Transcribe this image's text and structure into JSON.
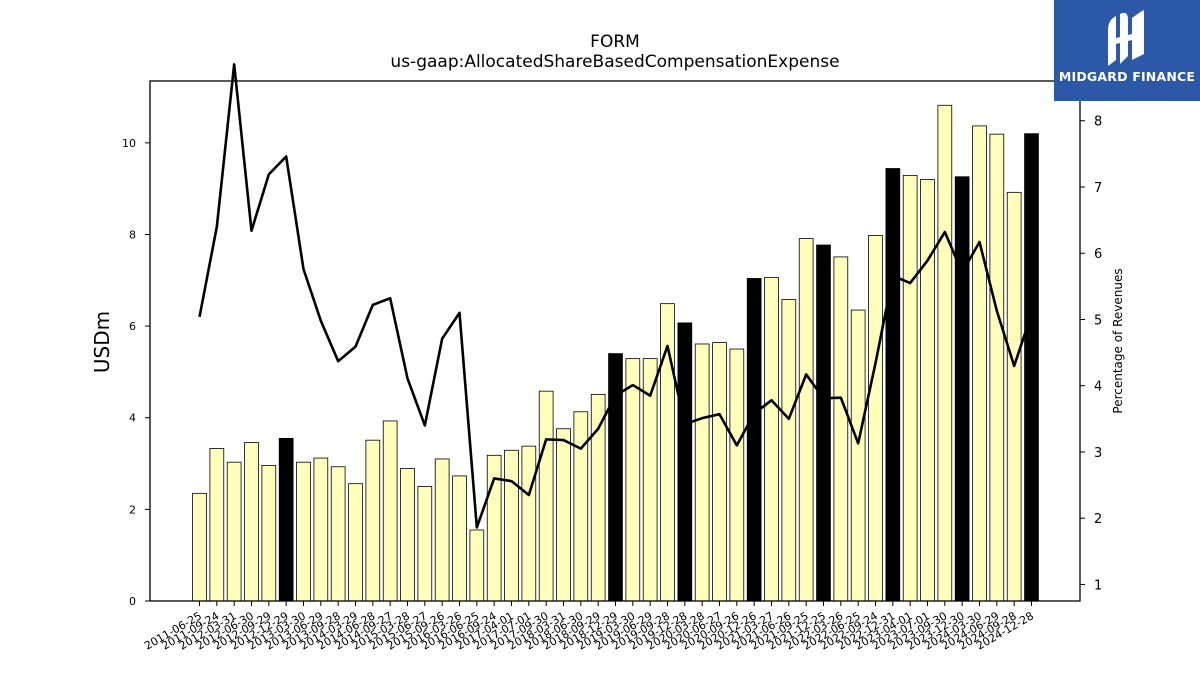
{
  "chart_data": {
    "type": "bar",
    "title": "FORM",
    "subtitle": "us-gaap:AllocatedShareBasedCompensationExpense",
    "ylabel": "USDm",
    "y2label": "Percentage of Revenues",
    "ylim": [
      0,
      11.35
    ],
    "y2lim": [
      0.75,
      8.6
    ],
    "yticks": [
      0,
      2,
      4,
      6,
      8,
      10
    ],
    "y2ticks": [
      1,
      2,
      3,
      4,
      5,
      6,
      7,
      8
    ],
    "grid": false,
    "categories": [
      "2011-06-25",
      "2011-09-24",
      "2012-03-31",
      "2012-06-30",
      "2012-09-29",
      "2012-12-29",
      "2013-03-30",
      "2013-06-29",
      "2013-09-28",
      "2014-03-29",
      "2014-06-28",
      "2014-09-27",
      "2015-03-28",
      "2015-06-27",
      "2015-09-26",
      "2016-03-26",
      "2016-06-25",
      "2016-09-24",
      "2017-04-01",
      "2017-07-01",
      "2017-09-30",
      "2018-03-31",
      "2018-06-30",
      "2018-09-29",
      "2018-12-29",
      "2019-03-30",
      "2019-06-29",
      "2019-09-28",
      "2019-12-28",
      "2020-03-28",
      "2020-06-27",
      "2020-09-26",
      "2020-12-26",
      "2021-03-27",
      "2021-06-26",
      "2021-09-25",
      "2021-12-25",
      "2022-03-26",
      "2022-06-25",
      "2022-09-24",
      "2022-12-31",
      "2023-04-01",
      "2023-07-01",
      "2023-09-30",
      "2023-12-30",
      "2024-03-30",
      "2024-06-29",
      "2024-09-28",
      "2024-12-28"
    ],
    "series": [
      {
        "kind": "bar",
        "values": [
          2.35,
          3.33,
          3.03,
          3.46,
          2.96,
          3.55,
          3.03,
          3.12,
          2.93,
          2.56,
          3.51,
          3.93,
          2.89,
          2.5,
          3.1,
          2.73,
          1.55,
          3.18,
          3.29,
          3.38,
          4.58,
          3.76,
          4.13,
          4.51,
          5.4,
          5.29,
          5.29,
          6.49,
          6.07,
          5.61,
          5.64,
          5.5,
          7.04,
          7.06,
          6.58,
          7.91,
          7.77,
          7.51,
          6.35,
          7.98,
          9.44,
          9.29,
          9.2,
          10.82,
          9.26,
          10.37,
          10.19,
          8.92,
          10.2
        ],
        "highlighted": [
          false,
          false,
          false,
          false,
          false,
          true,
          false,
          false,
          false,
          false,
          false,
          false,
          false,
          false,
          false,
          false,
          false,
          false,
          false,
          false,
          false,
          false,
          false,
          false,
          true,
          false,
          false,
          false,
          true,
          false,
          false,
          false,
          true,
          false,
          false,
          false,
          true,
          false,
          false,
          false,
          true,
          false,
          false,
          false,
          true,
          false,
          false,
          false,
          true
        ],
        "color": "#ffffbb",
        "highlight_color": "#000000"
      },
      {
        "kind": "line",
        "axis": "right",
        "values": [
          5.04,
          6.4,
          8.85,
          6.34,
          7.19,
          7.46,
          5.76,
          4.98,
          4.37,
          4.59,
          5.22,
          5.32,
          4.11,
          3.4,
          4.71,
          5.1,
          1.86,
          2.6,
          2.56,
          2.35,
          3.19,
          3.18,
          3.05,
          3.35,
          3.85,
          4.01,
          3.85,
          4.6,
          3.42,
          3.51,
          3.57,
          3.1,
          3.58,
          3.78,
          3.5,
          4.17,
          3.81,
          3.82,
          3.13,
          4.34,
          5.66,
          5.55,
          5.89,
          6.32,
          5.71,
          6.17,
          5.13,
          4.3,
          5.08
        ],
        "color": "#000000"
      }
    ]
  },
  "logo": {
    "text": "MIDGARD FINANCE",
    "color": "#2b59a8"
  }
}
